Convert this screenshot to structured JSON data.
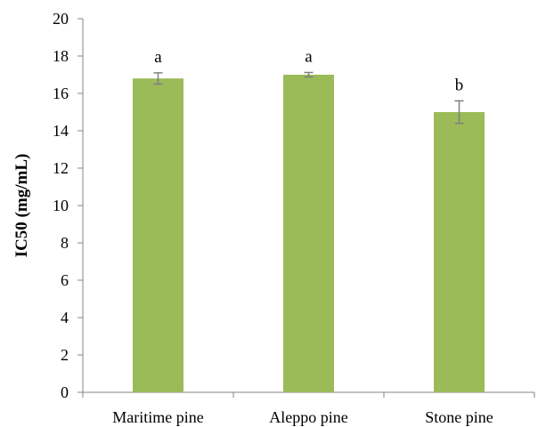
{
  "colors": {
    "bar": "#9bbb59",
    "axis": "#868686",
    "error_bar": "#7f7f7f",
    "text": "#000000"
  },
  "chart_data": {
    "type": "bar",
    "categories": [
      "Maritime pine",
      "Aleppo pine",
      "Stone pine"
    ],
    "values": [
      16.8,
      17.0,
      15.0
    ],
    "error": [
      0.3,
      0.12,
      0.6
    ],
    "significance_labels": [
      "a",
      "a",
      "b"
    ],
    "title": "",
    "xlabel": "",
    "ylabel": "IC50 (mg/mL)",
    "ylim": [
      0,
      20
    ],
    "yticks": [
      0,
      2,
      4,
      6,
      8,
      10,
      12,
      14,
      16,
      18,
      20
    ],
    "grid": false,
    "legend": "none"
  }
}
